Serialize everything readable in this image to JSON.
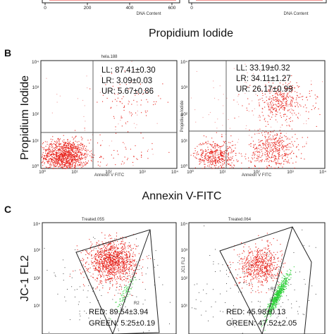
{
  "figure": {
    "panel_b_letter": "B",
    "panel_c_letter": "C",
    "panel_a_xlabel": "Propidium Iodide",
    "panel_b_xlabel": "Annexin V-FITC",
    "panel_b_ylabel": "Propidium Iodide",
    "panel_c_ylabel": "JC-1 FL2"
  },
  "panel_a": {
    "ticks": [
      "0",
      "200",
      "400",
      "600"
    ],
    "axis_label": "DNA Content"
  },
  "panel_b": {
    "plots": [
      {
        "file_label": "hela.188",
        "x_axis_label": "Annexin V FITC",
        "y_axis_label": "",
        "stats": [
          "LL: 87.41±0.30",
          "LR: 3.09±0.03",
          "UR: 5.67±0.86"
        ]
      },
      {
        "file_label": "",
        "x_axis_label": "Annexin V FITC",
        "y_axis_label": "Propidium Iodide",
        "stats": [
          "LL: 33.19±0.32",
          "LR: 34.11±1.27",
          "UR: 26.17±0.99"
        ]
      }
    ],
    "log_ticks": [
      "10⁰",
      "10¹",
      "10²",
      "10³",
      "10⁴"
    ]
  },
  "panel_c": {
    "plots": [
      {
        "file_label": "Treated.055",
        "y_axis_label": "",
        "gate_label": "R2",
        "red_label": "RED: 89.54±3.94",
        "green_label": "GREEN: 5.25±0.19"
      },
      {
        "file_label": "Treated.064",
        "y_axis_label": "JC1 FL2",
        "gate_label": "R2",
        "red_label": "RED: 45.98±0.13",
        "green_label": "GREEN: 47.52±2.05"
      }
    ],
    "log_ticks": [
      "10⁰",
      "10¹",
      "10²",
      "10³",
      "10⁴"
    ]
  },
  "colors": {
    "red_events": "#e8231c",
    "green_events": "#2fd13a",
    "black_events": "#222222",
    "pink_events": "#f2a0a0"
  },
  "chart_data": [
    {
      "type": "scatter",
      "panel": "B-left",
      "xlabel": "Annexin V-FITC",
      "ylabel": "Propidium Iodide",
      "xscale": "log",
      "yscale": "log",
      "xlim": [
        1,
        10000
      ],
      "ylim": [
        1,
        10000
      ],
      "quadrant_gates": {
        "x": 120,
        "y": 110
      },
      "quadrant_percent": {
        "LL": 87.41,
        "LR": 3.09,
        "UR": 5.67
      },
      "populations": [
        {
          "name": "LL",
          "center": [
            5,
            3
          ],
          "spread": [
            0.35,
            0.3
          ],
          "color": "red",
          "fraction": 0.87
        },
        {
          "name": "LR",
          "center": [
            300,
            3
          ],
          "spread": [
            0.4,
            0.3
          ],
          "color": "red",
          "fraction": 0.03
        },
        {
          "name": "UR",
          "center": [
            400,
            300
          ],
          "spread": [
            0.5,
            0.5
          ],
          "color": "red",
          "fraction": 0.06
        },
        {
          "name": "background",
          "center": [
            100,
            100
          ],
          "spread": [
            1.2,
            1.2
          ],
          "color": "pink",
          "fraction": 0.04
        }
      ]
    },
    {
      "type": "scatter",
      "panel": "B-right",
      "xlabel": "Annexin V-FITC",
      "ylabel": "Propidium Iodide",
      "xscale": "log",
      "yscale": "log",
      "xlim": [
        1,
        10000
      ],
      "ylim": [
        1,
        10000
      ],
      "quadrant_gates": {
        "x": 120,
        "y": 110
      },
      "quadrant_percent": {
        "LL": 33.19,
        "LR": 34.11,
        "UR": 26.17
      },
      "populations": [
        {
          "name": "LL",
          "center": [
            6,
            3
          ],
          "spread": [
            0.3,
            0.3
          ],
          "color": "red",
          "fraction": 0.33
        },
        {
          "name": "LR",
          "center": [
            300,
            5
          ],
          "spread": [
            0.35,
            0.4
          ],
          "color": "red",
          "fraction": 0.34
        },
        {
          "name": "UR",
          "center": [
            500,
            300
          ],
          "spread": [
            0.45,
            0.35
          ],
          "color": "red",
          "fraction": 0.26
        },
        {
          "name": "background",
          "center": [
            100,
            200
          ],
          "spread": [
            1.2,
            1.0
          ],
          "color": "pink",
          "fraction": 0.07
        }
      ]
    },
    {
      "type": "scatter",
      "panel": "C-left",
      "ylabel": "JC-1 FL2",
      "xscale": "log",
      "yscale": "log",
      "xlim": [
        1,
        10000
      ],
      "ylim": [
        1,
        10000
      ],
      "percent": {
        "RED": 89.54,
        "GREEN": 5.25
      },
      "populations": [
        {
          "name": "RED",
          "center": [
            120,
            400
          ],
          "spread": [
            0.35,
            0.35
          ],
          "color": "red",
          "fraction": 0.85
        },
        {
          "name": "GREEN",
          "center": [
            300,
            30
          ],
          "spread": [
            0.15,
            0.3
          ],
          "color": "green",
          "fraction": 0.05
        },
        {
          "name": "background",
          "center": [
            80,
            60
          ],
          "spread": [
            1.0,
            0.9
          ],
          "color": "black",
          "fraction": 0.1
        }
      ]
    },
    {
      "type": "scatter",
      "panel": "C-right",
      "ylabel": "JC-1 FL2",
      "xscale": "log",
      "yscale": "log",
      "xlim": [
        1,
        10000
      ],
      "ylim": [
        1,
        10000
      ],
      "percent": {
        "RED": 45.98,
        "GREEN": 47.52
      },
      "populations": [
        {
          "name": "RED",
          "center": [
            120,
            300
          ],
          "spread": [
            0.3,
            0.35
          ],
          "color": "red",
          "fraction": 0.45
        },
        {
          "name": "GREEN",
          "center": [
            400,
            25
          ],
          "spread": [
            0.15,
            0.35
          ],
          "color": "green",
          "fraction": 0.45
        },
        {
          "name": "background",
          "center": [
            80,
            40
          ],
          "spread": [
            1.0,
            0.9
          ],
          "color": "black",
          "fraction": 0.1
        }
      ]
    }
  ]
}
